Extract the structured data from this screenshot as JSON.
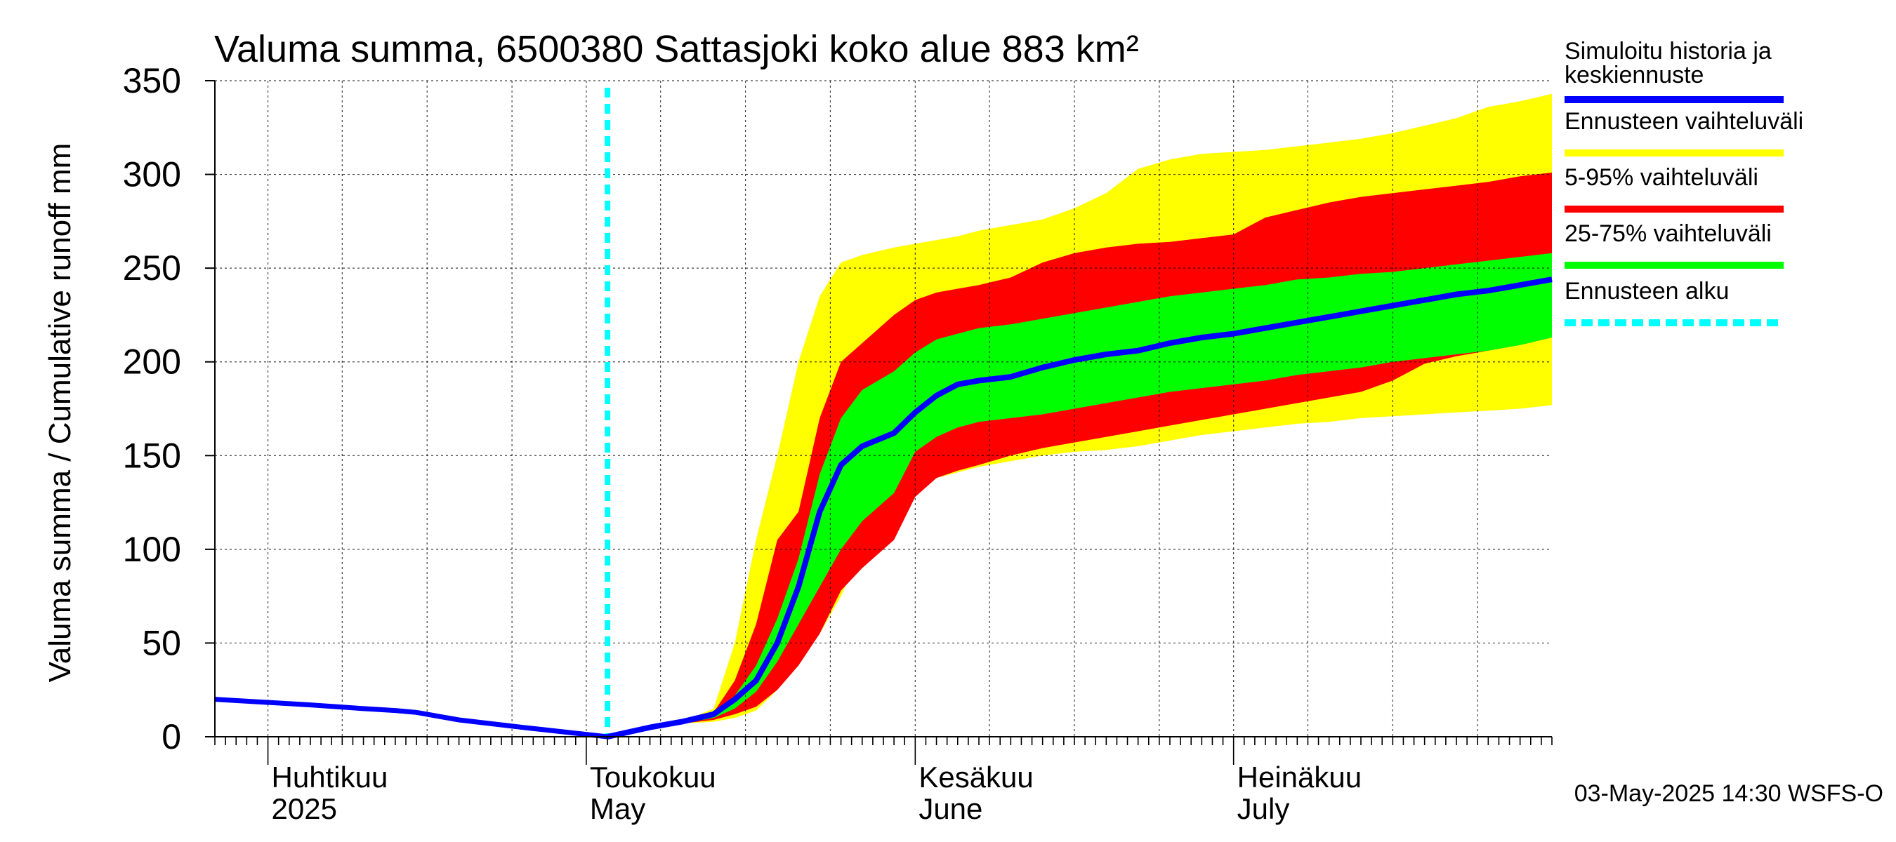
{
  "chart_data": {
    "type": "area",
    "title": "Valuma summa, 6500380 Sattasjoki koko alue 883 km²",
    "ylabel": "Valuma summa / Cumulative runoff    mm",
    "ylim": [
      0,
      350
    ],
    "yticks": [
      0,
      50,
      100,
      150,
      200,
      250,
      300,
      350
    ],
    "x_range": [
      "2025-03-27",
      "2025-07-31"
    ],
    "forecast_start": "2025-05-03",
    "month_labels": [
      {
        "date": "2025-04-01",
        "line1": "Huhtikuu",
        "line2": "2025"
      },
      {
        "date": "2025-05-01",
        "line1": "Toukokuu",
        "line2": "May"
      },
      {
        "date": "2025-06-01",
        "line1": "Kesäkuu",
        "line2": "June"
      },
      {
        "date": "2025-07-01",
        "line1": "Heinäkuu",
        "line2": "July"
      }
    ],
    "legend": [
      {
        "label": "Simuloitu historia ja keskiennuste",
        "color": "#0000ff",
        "style": "solid"
      },
      {
        "label": "Ennusteen vaihteluväli",
        "color": "#ffff00",
        "style": "solid"
      },
      {
        "label": "5-95% vaihteluväli",
        "color": "#ff0000",
        "style": "solid"
      },
      {
        "label": "25-75% vaihteluväli",
        "color": "#00ff00",
        "style": "solid"
      },
      {
        "label": "Ennusteen alku",
        "color": "#00ffff",
        "style": "dashed"
      }
    ],
    "history": {
      "x": [
        "2025-03-27",
        "2025-04-05",
        "2025-04-10",
        "2025-04-13",
        "2025-04-15",
        "2025-04-19",
        "2025-04-25",
        "2025-05-03"
      ],
      "y": [
        20,
        17,
        15,
        14,
        13,
        9,
        5,
        0
      ]
    },
    "forecast_x": [
      "2025-05-03",
      "2025-05-07",
      "2025-05-10",
      "2025-05-13",
      "2025-05-15",
      "2025-05-17",
      "2025-05-19",
      "2025-05-21",
      "2025-05-23",
      "2025-05-25",
      "2025-05-27",
      "2025-05-30",
      "2025-06-01",
      "2025-06-03",
      "2025-06-05",
      "2025-06-07",
      "2025-06-10",
      "2025-06-13",
      "2025-06-16",
      "2025-06-19",
      "2025-06-22",
      "2025-06-25",
      "2025-06-28",
      "2025-07-01",
      "2025-07-04",
      "2025-07-07",
      "2025-07-10",
      "2025-07-13",
      "2025-07-16",
      "2025-07-19",
      "2025-07-22",
      "2025-07-25",
      "2025-07-28",
      "2025-07-31"
    ],
    "series": [
      {
        "name": "Ennusteen vaihteluväli",
        "role": "band",
        "color": "#ffff00",
        "upper": [
          0,
          5,
          8,
          15,
          50,
          105,
          150,
          200,
          235,
          253,
          257,
          261,
          263,
          265,
          267,
          270,
          273,
          276,
          282,
          290,
          303,
          308,
          311,
          312,
          313,
          315,
          317,
          319,
          322,
          326,
          330,
          336,
          339,
          343
        ],
        "lower": [
          0,
          5,
          7,
          8,
          10,
          14,
          25,
          40,
          55,
          75,
          100,
          128,
          135,
          138,
          141,
          144,
          147,
          150,
          152,
          153,
          155,
          158,
          161,
          163,
          165,
          167,
          168,
          170,
          171,
          172,
          173,
          174,
          175,
          177
        ]
      },
      {
        "name": "5-95% vaihteluväli",
        "role": "band",
        "color": "#ff0000",
        "upper": [
          0,
          5,
          8,
          13,
          30,
          60,
          105,
          120,
          170,
          200,
          210,
          225,
          233,
          237,
          239,
          241,
          245,
          253,
          258,
          261,
          263,
          264,
          266,
          268,
          277,
          281,
          285,
          288,
          290,
          292,
          294,
          296,
          299,
          301
        ],
        "lower": [
          0,
          5,
          7,
          9,
          12,
          16,
          25,
          38,
          55,
          78,
          90,
          105,
          128,
          138,
          142,
          145,
          150,
          154,
          157,
          160,
          163,
          166,
          169,
          172,
          175,
          178,
          181,
          184,
          190,
          199,
          203,
          206,
          209,
          213
        ]
      },
      {
        "name": "25-75% vaihteluväli",
        "role": "band",
        "color": "#00ff00",
        "upper": [
          0,
          5,
          8,
          12,
          22,
          38,
          63,
          95,
          140,
          170,
          185,
          195,
          205,
          212,
          215,
          218,
          220,
          223,
          226,
          229,
          232,
          235,
          237,
          239,
          241,
          244,
          245,
          247,
          248,
          250,
          252,
          254,
          256,
          258
        ]
      },
      {
        "name": "",
        "role": "band-lower-25",
        "color": "#00ff00",
        "lower": [
          0,
          5,
          7,
          10,
          15,
          24,
          40,
          60,
          80,
          100,
          115,
          130,
          152,
          160,
          165,
          168,
          170,
          172,
          175,
          178,
          181,
          184,
          186,
          188,
          190,
          193,
          195,
          197,
          200,
          202,
          204,
          206,
          209,
          213
        ]
      },
      {
        "name": "Simuloitu historia ja keskiennuste",
        "role": "median",
        "color": "#0000ff",
        "values": [
          0,
          5,
          8,
          12,
          20,
          30,
          50,
          80,
          120,
          145,
          155,
          162,
          173,
          182,
          188,
          190,
          192,
          197,
          201,
          204,
          206,
          210,
          213,
          215,
          218,
          221,
          224,
          227,
          230,
          233,
          236,
          238,
          241,
          244
        ]
      }
    ],
    "footer": "03-May-2025 14:30 WSFS-O"
  }
}
